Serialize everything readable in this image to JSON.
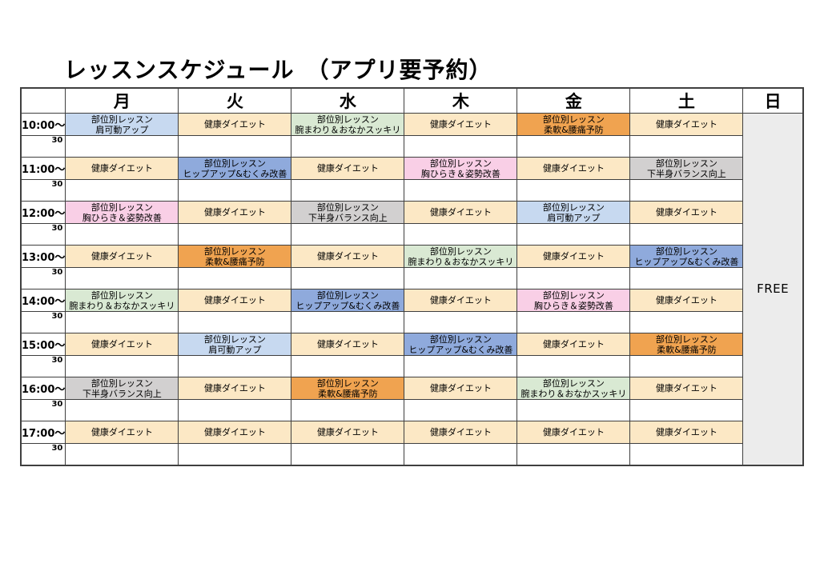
{
  "page": {
    "title": "レッスンスケジュール　（アプリ要予約）"
  },
  "table": {
    "days": [
      "月",
      "火",
      "水",
      "木",
      "金",
      "土",
      "日"
    ],
    "free_label": "FREE",
    "half_label": "30",
    "colors": {
      "cream": "#fce8c5",
      "lightblue": "#c7d9f0",
      "green": "#d9e9d3",
      "orange": "#f0a350",
      "pink": "#f9cfe6",
      "blue": "#8faadc",
      "gray": "#d2d0d0",
      "free_bg": "#ececec",
      "border": "#3f3f3f"
    },
    "rows": [
      {
        "time": "10:00～",
        "cells": [
          {
            "color": "lightblue",
            "lines": [
              "部位別レッスン",
              "肩可動アップ"
            ]
          },
          {
            "color": "cream",
            "lines": [
              "健康ダイエット"
            ]
          },
          {
            "color": "green",
            "lines": [
              "部位別レッスン",
              "腕まわり＆おなかスッキリ"
            ]
          },
          {
            "color": "cream",
            "lines": [
              "健康ダイエット"
            ]
          },
          {
            "color": "orange",
            "lines": [
              "部位別レッスン",
              "柔軟&腰痛予防"
            ]
          },
          {
            "color": "cream",
            "lines": [
              "健康ダイエット"
            ]
          }
        ]
      },
      {
        "time": "11:00～",
        "cells": [
          {
            "color": "cream",
            "lines": [
              "健康ダイエット"
            ]
          },
          {
            "color": "blue",
            "lines": [
              "部位別レッスン",
              "ヒップアップ&むくみ改善"
            ]
          },
          {
            "color": "cream",
            "lines": [
              "健康ダイエット"
            ]
          },
          {
            "color": "pink",
            "lines": [
              "部位別レッスン",
              "胸ひらき＆姿勢改善"
            ]
          },
          {
            "color": "cream",
            "lines": [
              "健康ダイエット"
            ]
          },
          {
            "color": "gray",
            "lines": [
              "部位別レッスン",
              "下半身バランス向上"
            ]
          }
        ]
      },
      {
        "time": "12:00～",
        "cells": [
          {
            "color": "pink",
            "lines": [
              "部位別レッスン",
              "胸ひらき＆姿勢改善"
            ]
          },
          {
            "color": "cream",
            "lines": [
              "健康ダイエット"
            ]
          },
          {
            "color": "gray",
            "lines": [
              "部位別レッスン",
              "下半身バランス向上"
            ]
          },
          {
            "color": "cream",
            "lines": [
              "健康ダイエット"
            ]
          },
          {
            "color": "lightblue",
            "lines": [
              "部位別レッスン",
              "肩可動アップ"
            ]
          },
          {
            "color": "cream",
            "lines": [
              "健康ダイエット"
            ]
          }
        ]
      },
      {
        "time": "13:00～",
        "cells": [
          {
            "color": "cream",
            "lines": [
              "健康ダイエット"
            ]
          },
          {
            "color": "orange",
            "lines": [
              "部位別レッスン",
              "柔軟&腰痛予防"
            ]
          },
          {
            "color": "cream",
            "lines": [
              "健康ダイエット"
            ]
          },
          {
            "color": "green",
            "lines": [
              "部位別レッスン",
              "腕まわり＆おなかスッキリ"
            ]
          },
          {
            "color": "cream",
            "lines": [
              "健康ダイエット"
            ]
          },
          {
            "color": "blue",
            "lines": [
              "部位別レッスン",
              "ヒップアップ&むくみ改善"
            ]
          }
        ]
      },
      {
        "time": "14:00～",
        "cells": [
          {
            "color": "green",
            "lines": [
              "部位別レッスン",
              "腕まわり＆おなかスッキリ"
            ]
          },
          {
            "color": "cream",
            "lines": [
              "健康ダイエット"
            ]
          },
          {
            "color": "blue",
            "lines": [
              "部位別レッスン",
              "ヒップアップ&むくみ改善"
            ]
          },
          {
            "color": "cream",
            "lines": [
              "健康ダイエット"
            ]
          },
          {
            "color": "pink",
            "lines": [
              "部位別レッスン",
              "胸ひらき＆姿勢改善"
            ]
          },
          {
            "color": "cream",
            "lines": [
              "健康ダイエット"
            ]
          }
        ]
      },
      {
        "time": "15:00～",
        "cells": [
          {
            "color": "cream",
            "lines": [
              "健康ダイエット"
            ]
          },
          {
            "color": "lightblue",
            "lines": [
              "部位別レッスン",
              "肩可動アップ"
            ]
          },
          {
            "color": "cream",
            "lines": [
              "健康ダイエット"
            ]
          },
          {
            "color": "blue",
            "lines": [
              "部位別レッスン",
              "ヒップアップ&むくみ改善"
            ]
          },
          {
            "color": "cream",
            "lines": [
              "健康ダイエット"
            ]
          },
          {
            "color": "orange",
            "lines": [
              "部位別レッスン",
              "柔軟&腰痛予防"
            ]
          }
        ]
      },
      {
        "time": "16:00～",
        "cells": [
          {
            "color": "gray",
            "lines": [
              "部位別レッスン",
              "下半身バランス向上"
            ]
          },
          {
            "color": "cream",
            "lines": [
              "健康ダイエット"
            ]
          },
          {
            "color": "orange",
            "lines": [
              "部位別レッスン",
              "柔軟&腰痛予防"
            ]
          },
          {
            "color": "cream",
            "lines": [
              "健康ダイエット"
            ]
          },
          {
            "color": "green",
            "lines": [
              "部位別レッスン",
              "腕まわり＆おなかスッキリ"
            ]
          },
          {
            "color": "cream",
            "lines": [
              "健康ダイエット"
            ]
          }
        ]
      },
      {
        "time": "17:00～",
        "cells": [
          {
            "color": "cream",
            "lines": [
              "健康ダイエット"
            ]
          },
          {
            "color": "cream",
            "lines": [
              "健康ダイエット"
            ]
          },
          {
            "color": "cream",
            "lines": [
              "健康ダイエット"
            ]
          },
          {
            "color": "cream",
            "lines": [
              "健康ダイエット"
            ]
          },
          {
            "color": "cream",
            "lines": [
              "健康ダイエット"
            ]
          },
          {
            "color": "cream",
            "lines": [
              "健康ダイエット"
            ]
          }
        ]
      }
    ]
  }
}
